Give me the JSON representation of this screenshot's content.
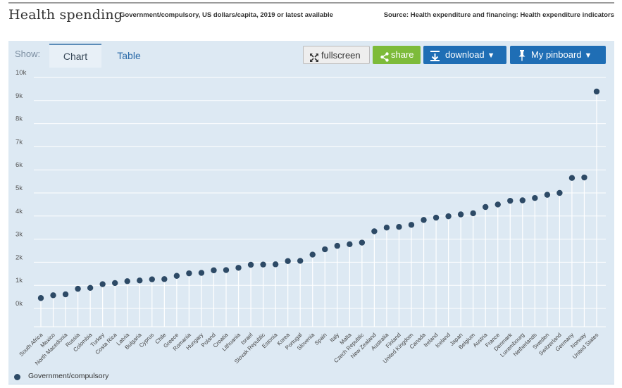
{
  "header": {
    "title": "Health spending",
    "subtitle": "Government/compulsory, US dollars/capita, 2019 or latest available",
    "source": "Source: Health expenditure and financing: Health expenditure indicators"
  },
  "toolbar": {
    "show_label": "Show:",
    "tabs": [
      {
        "label": "Chart",
        "active": true
      },
      {
        "label": "Table",
        "active": false
      }
    ],
    "fullscreen_label": "fullscreen",
    "share_label": "share",
    "download_label": "download",
    "pinboard_label": "My pinboard",
    "share_color": "#7dbb3a",
    "primary_color": "#1f6eb5"
  },
  "icons": {
    "fullscreen": "expand-arrows-icon",
    "share": "share-icon",
    "download": "download-icon",
    "pinboard": "pin-icon",
    "caret": "caret-down-icon"
  },
  "colors": {
    "panel_bg": "#dde9f3",
    "dot": "#2d4a66",
    "stem": "#ffffff"
  },
  "chart_data": {
    "type": "scatter",
    "style": "dot with vertical stem (lollipop)",
    "title": "",
    "xlabel": "",
    "ylabel": "",
    "ylim": [
      0,
      10000
    ],
    "yticks": [
      0,
      1000,
      2000,
      3000,
      4000,
      5000,
      6000,
      7000,
      8000,
      9000,
      10000
    ],
    "ytick_labels": [
      "0k",
      "1k",
      "2k",
      "3k",
      "4k",
      "5k",
      "6k",
      "7k",
      "8k",
      "9k",
      "10k"
    ],
    "grid": true,
    "legend": "bottom-left",
    "categories": [
      "South Africa",
      "Mexico",
      "North Macedonia",
      "Russia",
      "Colombia",
      "Turkey",
      "Costa Rica",
      "Latvia",
      "Bulgaria",
      "Cyprus",
      "Chile",
      "Greece",
      "Romania",
      "Hungary",
      "Poland",
      "Croatia",
      "Lithuania",
      "Israel",
      "Slovak Republic",
      "Estonia",
      "Korea",
      "Portugal",
      "Slovenia",
      "Spain",
      "Italy",
      "Malta",
      "Czech Republic",
      "New Zealand",
      "Australia",
      "Finland",
      "United Kingdom",
      "Canada",
      "Ireland",
      "Iceland",
      "Japan",
      "Belgium",
      "Austria",
      "France",
      "Denmark",
      "Luxembourg",
      "Netherlands",
      "Sweden",
      "Switzerland",
      "Germany",
      "Norway",
      "United States"
    ],
    "series": [
      {
        "name": "Government/compulsory",
        "color": "#2d4a66",
        "values": [
          450,
          570,
          610,
          850,
          890,
          1050,
          1100,
          1180,
          1210,
          1260,
          1270,
          1410,
          1520,
          1540,
          1650,
          1660,
          1760,
          1890,
          1900,
          1910,
          2050,
          2060,
          2330,
          2560,
          2710,
          2780,
          2850,
          3340,
          3500,
          3530,
          3620,
          3830,
          3930,
          3990,
          4070,
          4120,
          4390,
          4500,
          4660,
          4680,
          4780,
          4920,
          5000,
          5650,
          5670,
          9390
        ]
      }
    ]
  }
}
